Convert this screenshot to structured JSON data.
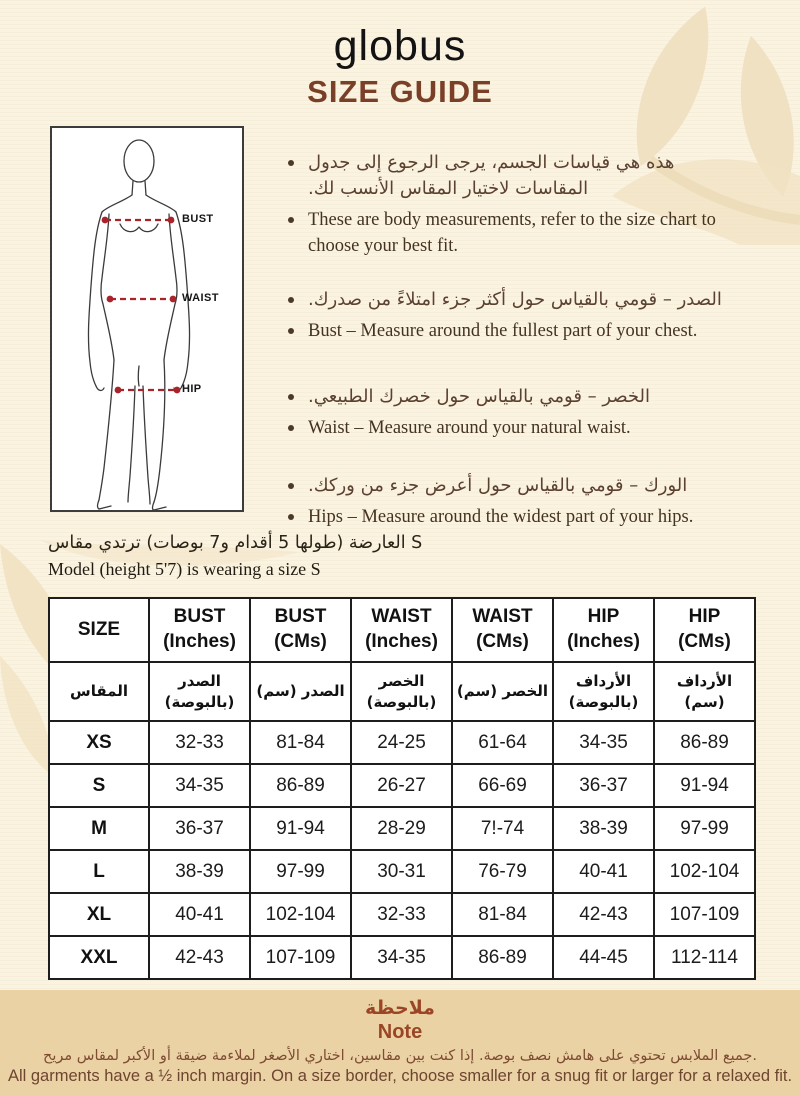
{
  "page": {
    "background": "#fbf3e2",
    "accent_brown": "#7a3f27",
    "note_background": "#ebd2a4",
    "measure_line_red": "#a8232a",
    "leaf_decoration": "#f0e1c2"
  },
  "header": {
    "logo": "globus",
    "title": "SIZE GUIDE"
  },
  "figure": {
    "bust_label": "BUST",
    "waist_label": "WAIST",
    "hip_label": "HIP"
  },
  "instructions": [
    {
      "ar": "هذه هي قياسات الجسم، يرجى الرجوع إلى جدول المقاسات لاختيار المقاس الأنسب لك.",
      "en": "These are body measurements, refer to the size chart to choose your best fit."
    },
    {
      "ar": "الصدر – قومي بالقياس حول أكثر جزء امتلاءً من صدرك.",
      "en": "Bust – Measure around the fullest part of your chest."
    },
    {
      "ar": "الخصر – قومي بالقياس حول خصرك الطبيعي.",
      "en": "Waist – Measure around your natural waist."
    },
    {
      "ar": "الورك – قومي بالقياس حول أعرض جزء من وركك.",
      "en": "Hips – Measure around the widest part of your hips."
    }
  ],
  "model_info": {
    "ar": "العارضة (طولها 5 أقدام و7 بوصات) ترتدي مقاس S",
    "en": "Model (height 5'7) is wearing a size S"
  },
  "size_table": {
    "columns_en": [
      {
        "line1": "SIZE",
        "line2": ""
      },
      {
        "line1": "BUST",
        "line2": "(Inches)"
      },
      {
        "line1": "BUST",
        "line2": "(CMs)"
      },
      {
        "line1": "WAIST",
        "line2": "(Inches)"
      },
      {
        "line1": "WAIST",
        "line2": "(CMs)"
      },
      {
        "line1": "HIP",
        "line2": "(Inches)"
      },
      {
        "line1": "HIP",
        "line2": "(CMs)"
      }
    ],
    "columns_ar": [
      "المقاس",
      "الصدر (بالبوصة)",
      "الصدر (سم)",
      "الخصر (بالبوصة)",
      "الخصر (سم)",
      "الأرداف (بالبوصة)",
      "الأرداف (سم)"
    ],
    "rows": [
      {
        "size": "XS",
        "values": [
          "32-33",
          "81-84",
          "24-25",
          "61-64",
          "34-35",
          "86-89"
        ]
      },
      {
        "size": "S",
        "values": [
          "34-35",
          "86-89",
          "26-27",
          "66-69",
          "36-37",
          "91-94"
        ]
      },
      {
        "size": "M",
        "values": [
          "36-37",
          "91-94",
          "28-29",
          "7!-74",
          "38-39",
          "97-99"
        ]
      },
      {
        "size": "L",
        "values": [
          "38-39",
          "97-99",
          "30-31",
          "76-79",
          "40-41",
          "102-104"
        ]
      },
      {
        "size": "XL",
        "values": [
          "40-41",
          "102-104",
          "32-33",
          "81-84",
          "42-43",
          "107-109"
        ]
      },
      {
        "size": "XXL",
        "values": [
          "42-43",
          "107-109",
          "34-35",
          "86-89",
          "44-45",
          "112-114"
        ]
      }
    ]
  },
  "note": {
    "title_ar": "ملاحظة",
    "title_en": "Note",
    "body_ar": "جميع الملابس تحتوي على هامش نصف بوصة. إذا كنت بين مقاسين، اختاري الأصغر لملاءمة ضيقة أو الأكبر لمقاس مريح.",
    "body_en": "All garments have a ½ inch margin. On a size border, choose smaller for a snug fit or larger for a relaxed fit."
  }
}
